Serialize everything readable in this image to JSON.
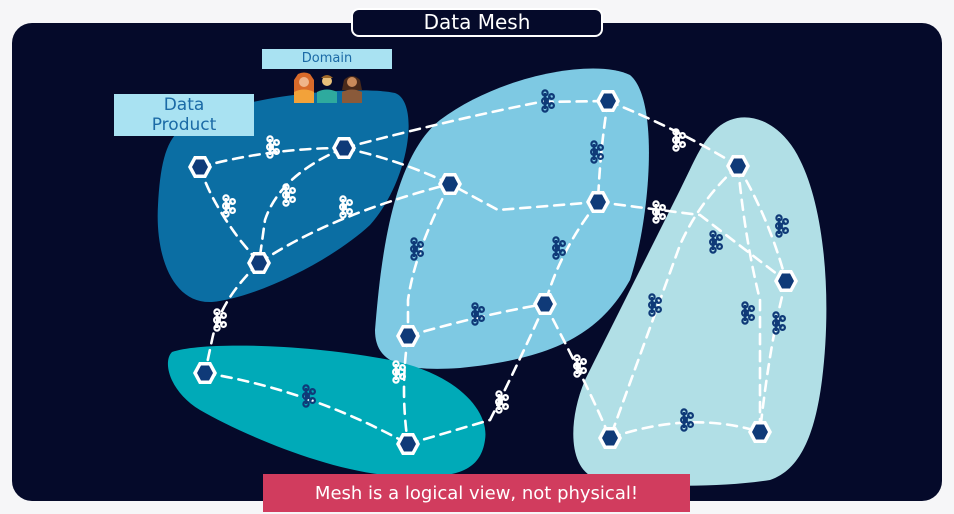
{
  "title": "Data Mesh",
  "labels": {
    "domain": "Domain",
    "data_product_line1": "Data",
    "data_product_line2": "Product"
  },
  "footer": "Mesh is a logical view, not physical!",
  "colors": {
    "background": "#050a2a",
    "domain_dark_blue": "#0b6ea3",
    "domain_light_blue": "#7ec9e3",
    "domain_teal": "#00aab8",
    "domain_pale_blue": "#b1dfe6",
    "label_fill": "#a9e2f2",
    "footer_fill": "#d13c5e"
  },
  "icons": [
    "product-hexagon-icon",
    "connector-icon",
    "people-icon"
  ]
}
